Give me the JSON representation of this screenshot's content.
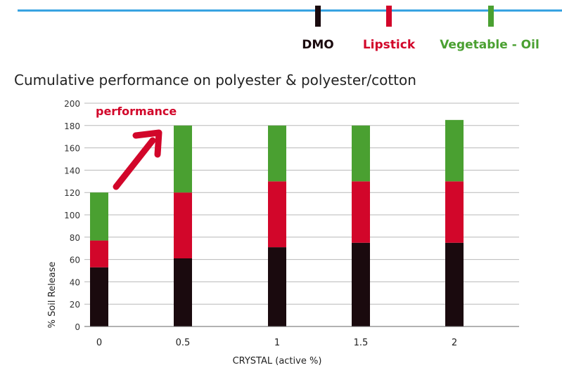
{
  "chart_data": {
    "type": "bar",
    "stacked": true,
    "title": "Cumulative performance on polyester & polyester/cotton",
    "xlabel": "CRYSTAL (active %)",
    "ylabel": "% Soil Release",
    "ylim": [
      0,
      200
    ],
    "yticks": [
      0,
      20,
      40,
      60,
      80,
      100,
      120,
      140,
      160,
      180,
      200
    ],
    "grid": true,
    "legend_position": "top-right",
    "categories": [
      "0",
      "0.5",
      "1",
      "1.5",
      "2"
    ],
    "series": [
      {
        "name": "DMO",
        "color": "#1a0a0e",
        "values": [
          53,
          61,
          71,
          75,
          75
        ]
      },
      {
        "name": "Lipstick",
        "color": "#d2062a",
        "values": [
          24,
          59,
          59,
          55,
          55
        ]
      },
      {
        "name": "Vegetable - Oil",
        "color": "#4aa031",
        "values": [
          43,
          60,
          50,
          50,
          55
        ]
      }
    ],
    "annotation": {
      "text": "performance",
      "color": "#d2062a"
    }
  }
}
